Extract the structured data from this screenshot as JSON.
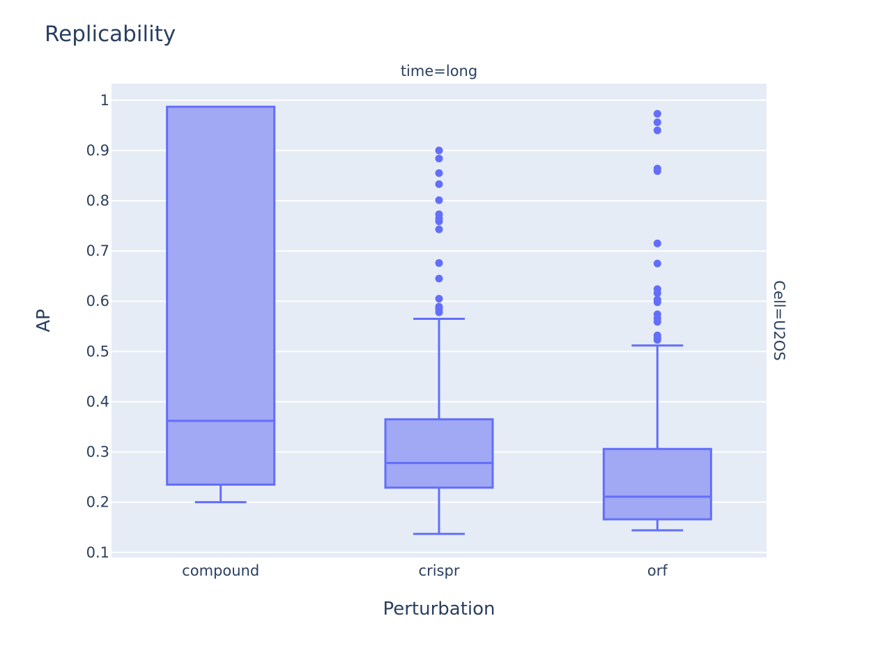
{
  "chart_data": {
    "type": "box",
    "title": "Replicability",
    "facet_col_label": "time=long",
    "facet_row_label": "Cell=U2OS",
    "xlabel": "Perturbation",
    "ylabel": "AP",
    "categories": [
      "compound",
      "crispr",
      "orf"
    ],
    "ylim": [
      0.09,
      1.033
    ],
    "yticks": [
      0.1,
      0.2,
      0.3,
      0.4,
      0.5,
      0.6,
      0.7,
      0.8,
      0.9,
      1
    ],
    "ytick_labels": [
      "0.1",
      "0.2",
      "0.3",
      "0.4",
      "0.5",
      "0.6",
      "0.7",
      "0.8",
      "0.9",
      "1"
    ],
    "grid": true,
    "colors": {
      "box_line": "#636efa",
      "box_fill": "#a1a8f4",
      "plot_bg": "#e5ecf6",
      "grid": "#ffffff",
      "text": "#2a3f5f"
    },
    "boxes": [
      {
        "category": "compound",
        "lower_whisker": 0.2,
        "q1": 0.235,
        "median": 0.362,
        "q3": 0.987,
        "upper_whisker": 0.987,
        "outliers": []
      },
      {
        "category": "crispr",
        "lower_whisker": 0.137,
        "q1": 0.229,
        "median": 0.278,
        "q3": 0.365,
        "upper_whisker": 0.565,
        "outliers": [
          0.9,
          0.884,
          0.855,
          0.833,
          0.801,
          0.773,
          0.765,
          0.759,
          0.743,
          0.676,
          0.645,
          0.605,
          0.589,
          0.584,
          0.578
        ]
      },
      {
        "category": "orf",
        "lower_whisker": 0.144,
        "q1": 0.166,
        "median": 0.211,
        "q3": 0.306,
        "upper_whisker": 0.512,
        "outliers": [
          0.973,
          0.956,
          0.94,
          0.864,
          0.859,
          0.715,
          0.675,
          0.624,
          0.616,
          0.603,
          0.598,
          0.574,
          0.566,
          0.559,
          0.532,
          0.527,
          0.523
        ]
      }
    ]
  }
}
